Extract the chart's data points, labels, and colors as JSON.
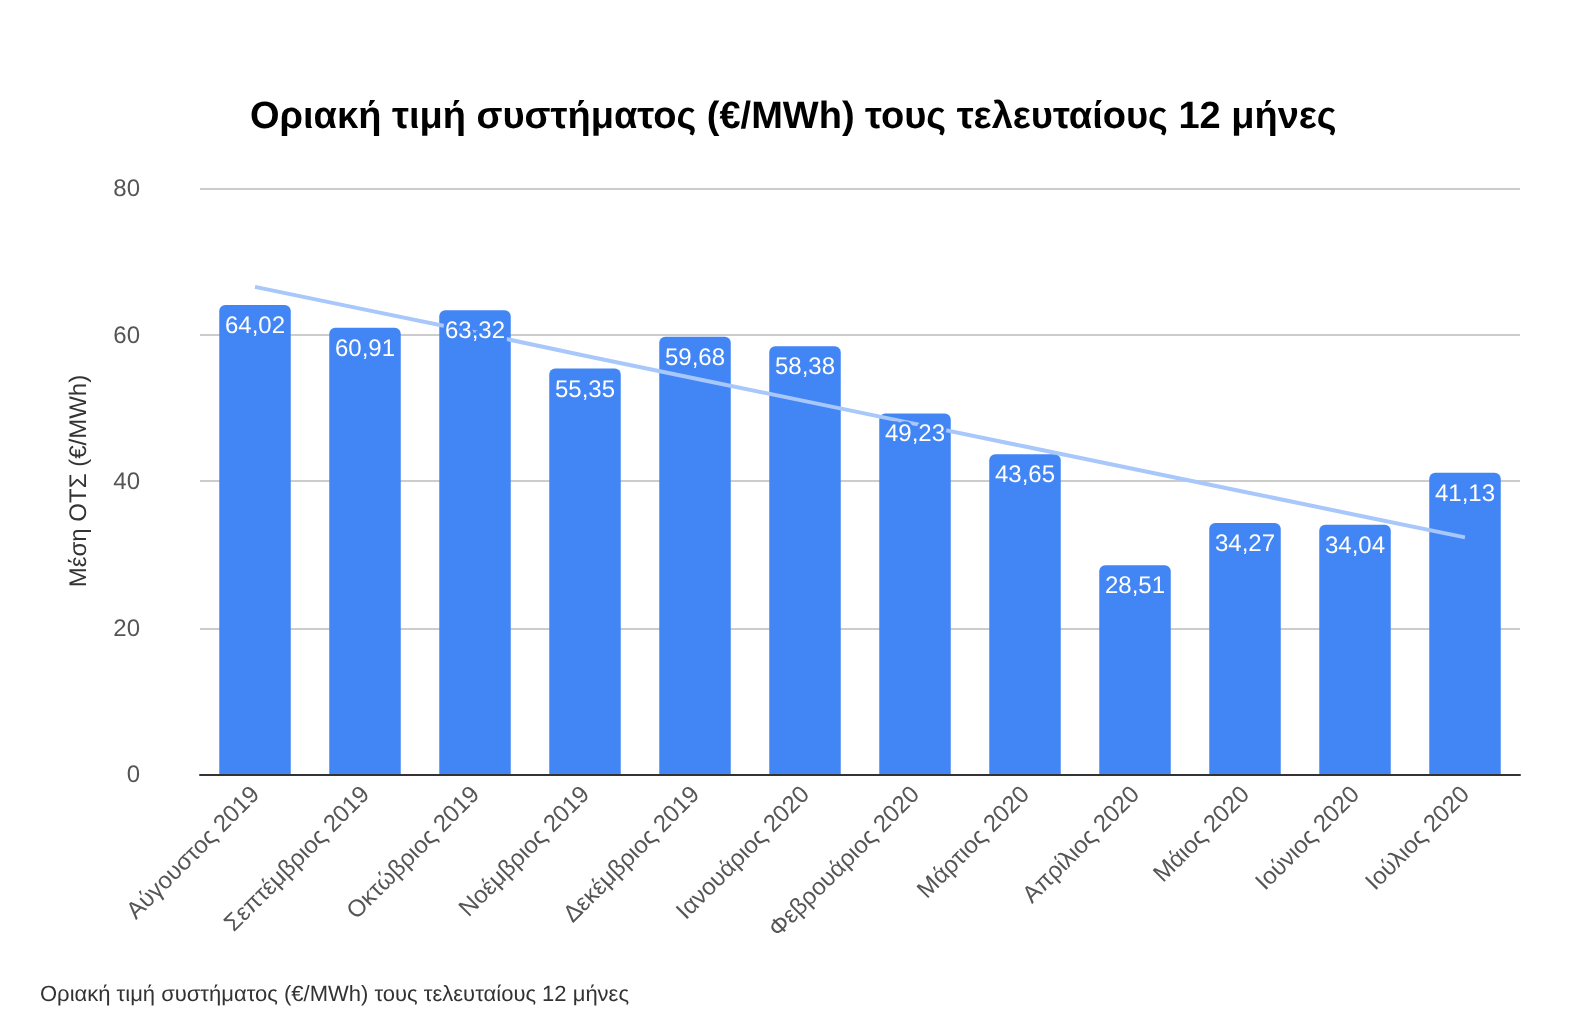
{
  "chart_data": {
    "type": "bar",
    "title": "Οριακή τιμή συστήματος (€/MWh) τους τελευταίους 12 μήνες",
    "ylabel": "Μέση ΟΤΣ (€/MWh)",
    "categories": [
      "Αύγουστος 2019",
      "Σεπτέμβριος 2019",
      "Οκτώβριος 2019",
      "Νοέμβριος 2019",
      "Δεκέμβριος 2019",
      "Ιανουάριος 2020",
      "Φεβρουάριος 2020",
      "Μάρτιος 2020",
      "Απρίλιος 2020",
      "Μάιος 2020",
      "Ιούνιος 2020",
      "Ιούλιος 2020"
    ],
    "series": [
      {
        "color": "#4285f4",
        "values": [
          64.02,
          60.91,
          63.32,
          55.35,
          59.68,
          58.38,
          49.23,
          43.65,
          28.51,
          34.27,
          34.04,
          41.13
        ],
        "value_labels": [
          "64,02",
          "60,91",
          "63,32",
          "55,35",
          "59,68",
          "58,38",
          "49,23",
          "43,65",
          "28,51",
          "34,27",
          "34,04",
          "41,13"
        ]
      },
      {
        "type": "line",
        "color": "#a8c7fa",
        "values": [
          66.5,
          63.4,
          60.3,
          57.1,
          54.0,
          50.9,
          47.8,
          44.7,
          41.6,
          38.5,
          35.4,
          32.3
        ]
      }
    ],
    "ylim": [
      0,
      80
    ],
    "yticks": [
      0,
      20,
      40,
      60,
      80
    ],
    "grid": "y",
    "marker": "none",
    "annotations": [
      "Οριακή τιμή συστήματος (€/MWh) τους τελευταίους 12 μήνες"
    ]
  }
}
